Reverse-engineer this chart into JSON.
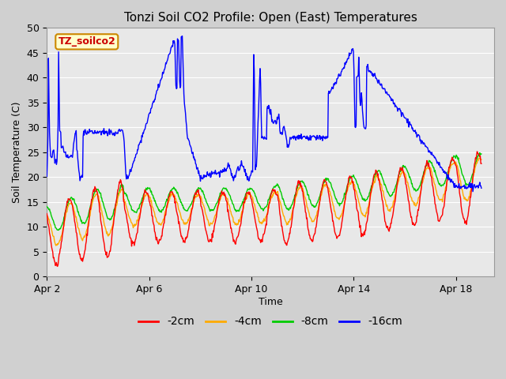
{
  "title": "Tonzi Soil CO2 Profile: Open (East) Temperatures",
  "xlabel": "Time",
  "ylabel": "Soil Temperature (C)",
  "ylim": [
    0,
    50
  ],
  "yticks": [
    0,
    5,
    10,
    15,
    20,
    25,
    30,
    35,
    40,
    45,
    50
  ],
  "colors": {
    "2cm": "#ff0000",
    "4cm": "#ffaa00",
    "8cm": "#00cc00",
    "16cm": "#0000ff"
  },
  "legend_labels": [
    "-2cm",
    "-4cm",
    "-8cm",
    "-16cm"
  ],
  "legend_colors": [
    "#ff0000",
    "#ffaa00",
    "#00cc00",
    "#0000ff"
  ],
  "watermark_text": "TZ_soilco2",
  "watermark_bg": "#ffffcc",
  "watermark_border": "#cc8800",
  "watermark_text_color": "#cc0000",
  "plot_bg_color": "#e8e8e8",
  "fig_bg_color": "#d0d0d0",
  "grid_color": "#ffffff",
  "x_tick_days": [
    2,
    6,
    10,
    14,
    18
  ]
}
